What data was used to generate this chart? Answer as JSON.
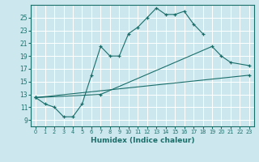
{
  "xlabel": "Humidex (Indice chaleur)",
  "bg_color": "#cce8ee",
  "line_color": "#1a6e6a",
  "grid_color": "#ffffff",
  "xlim": [
    -0.5,
    23.5
  ],
  "ylim": [
    8.0,
    27.0
  ],
  "yticks": [
    9,
    11,
    13,
    15,
    17,
    19,
    21,
    23,
    25
  ],
  "xticks": [
    0,
    1,
    2,
    3,
    4,
    5,
    6,
    7,
    8,
    9,
    10,
    11,
    12,
    13,
    14,
    15,
    16,
    17,
    18,
    19,
    20,
    21,
    22,
    23
  ],
  "series": [
    {
      "x": [
        0,
        1,
        2,
        3,
        4,
        5,
        6,
        7,
        8,
        9,
        10,
        11,
        12,
        13,
        14,
        15,
        16,
        17,
        18
      ],
      "y": [
        12.5,
        11.5,
        11.0,
        9.5,
        9.5,
        11.5,
        16.0,
        20.5,
        19.0,
        19.0,
        22.5,
        23.5,
        25.0,
        26.5,
        25.5,
        25.5,
        26.0,
        24.0,
        22.5
      ]
    },
    {
      "x": [
        0,
        7,
        19,
        20,
        21,
        23
      ],
      "y": [
        12.5,
        13.0,
        20.5,
        19.0,
        18.0,
        17.5
      ]
    },
    {
      "x": [
        0,
        23
      ],
      "y": [
        12.5,
        16.0
      ]
    }
  ]
}
